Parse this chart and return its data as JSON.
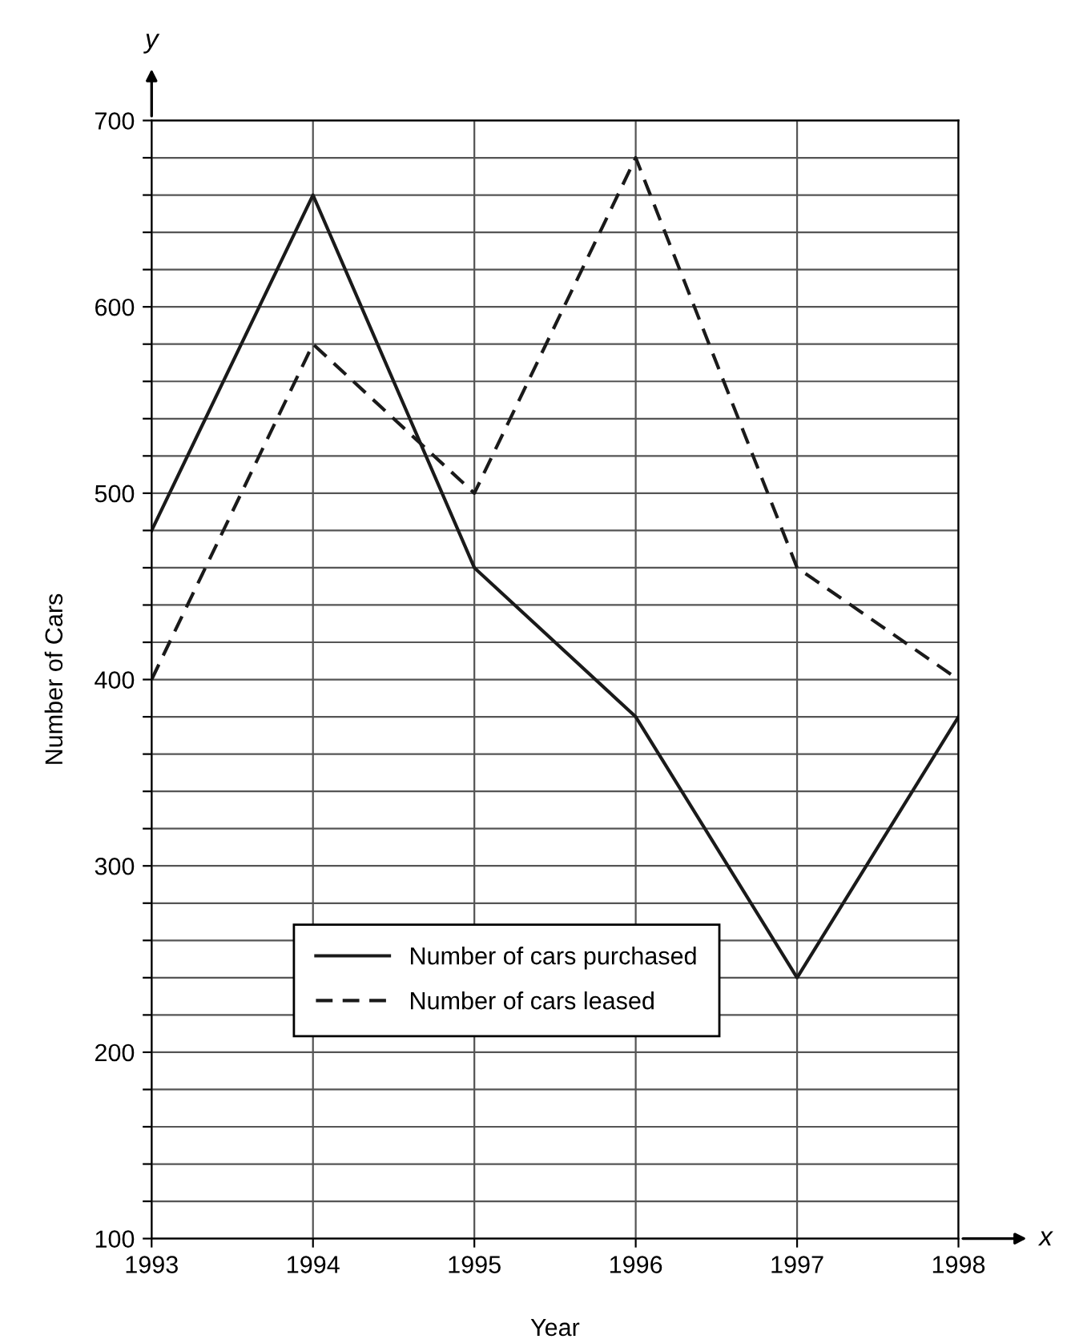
{
  "chart_data": {
    "type": "line",
    "xlabel": "Year",
    "ylabel": "Number of Cars",
    "x": [
      1993,
      1994,
      1995,
      1996,
      1997,
      1998
    ],
    "series": [
      {
        "name": "Number of cars purchased",
        "color": "#1a1a1a",
        "line_style": "solid",
        "values": [
          480,
          660,
          460,
          380,
          240,
          380
        ]
      },
      {
        "name": "Number of cars leased",
        "color": "#1a1a1a",
        "line_style": "dashed",
        "values": [
          400,
          580,
          500,
          680,
          460,
          400
        ]
      }
    ],
    "xlim": [
      1993,
      1998
    ],
    "xticks": [
      1993,
      1994,
      1995,
      1996,
      1997,
      1998
    ],
    "ylim": [
      100,
      700
    ],
    "yticks": [
      100,
      {
        "value": 120,
        "label": null
      },
      {
        "value": 140,
        "label": null
      },
      {
        "value": 160,
        "label": null
      },
      {
        "value": 180,
        "label": null
      },
      200,
      {
        "value": 220,
        "label": null
      },
      {
        "value": 240,
        "label": null
      },
      {
        "value": 260,
        "label": null
      },
      {
        "value": 280,
        "label": null
      },
      300,
      {
        "value": 320,
        "label": null
      },
      {
        "value": 340,
        "label": null
      },
      {
        "value": 360,
        "label": null
      },
      {
        "value": 380,
        "label": null
      },
      400,
      {
        "value": 420,
        "label": null
      },
      {
        "value": 440,
        "label": null
      },
      {
        "value": 460,
        "label": null
      },
      {
        "value": 480,
        "label": null
      },
      500,
      {
        "value": 520,
        "label": null
      },
      {
        "value": 540,
        "label": null
      },
      {
        "value": 560,
        "label": null
      },
      {
        "value": 580,
        "label": null
      },
      600,
      {
        "value": 620,
        "label": null
      },
      {
        "value": 640,
        "label": null
      },
      {
        "value": 660,
        "label": null
      },
      {
        "value": 680,
        "label": null
      },
      700
    ],
    "grid": true,
    "legend": "bottom",
    "marker": "none",
    "annotations": [
      "y",
      "x"
    ]
  }
}
